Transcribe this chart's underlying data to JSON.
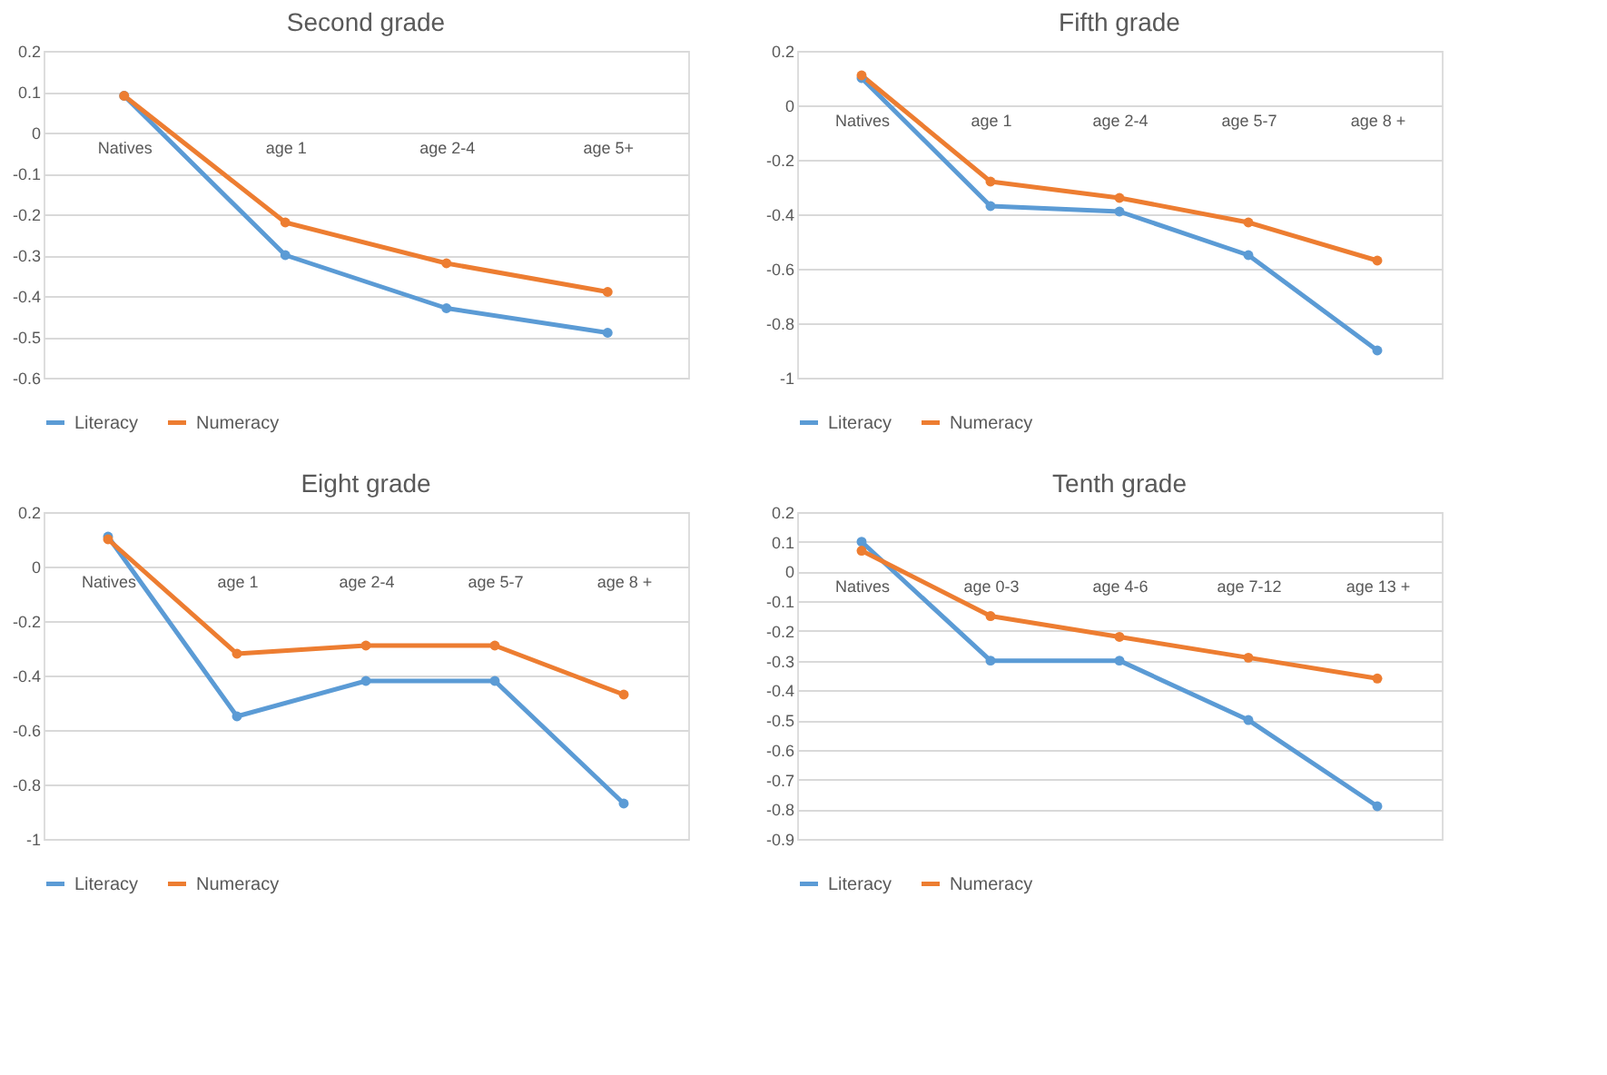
{
  "chart_data": [
    {
      "type": "line",
      "title": "Second grade",
      "categories": [
        "Natives",
        "age 1",
        "age 2-4",
        "age 5+"
      ],
      "ylim": [
        -0.6,
        0.2
      ],
      "yticks": [
        0.2,
        0.1,
        0,
        -0.1,
        -0.2,
        -0.3,
        -0.4,
        -0.5,
        -0.6
      ],
      "grid": "y",
      "legend": "bottom",
      "marker": "circle",
      "series": [
        {
          "name": "Literacy",
          "color": "#5b9bd5",
          "values": [
            0.09,
            -0.3,
            -0.43,
            -0.49
          ]
        },
        {
          "name": "Numeracy",
          "color": "#ed7d31",
          "values": [
            0.09,
            -0.22,
            -0.32,
            -0.39
          ]
        }
      ]
    },
    {
      "type": "line",
      "title": "Fifth grade",
      "categories": [
        "Natives",
        "age 1",
        "age 2-4",
        "age 5-7",
        "age 8 +"
      ],
      "ylim": [
        -1,
        0.2
      ],
      "yticks": [
        0.2,
        0,
        -0.2,
        -0.4,
        -0.6,
        -0.8,
        -1
      ],
      "grid": "y",
      "legend": "bottom",
      "marker": "circle",
      "series": [
        {
          "name": "Literacy",
          "color": "#5b9bd5",
          "values": [
            0.1,
            -0.37,
            -0.39,
            -0.55,
            -0.9
          ]
        },
        {
          "name": "Numeracy",
          "color": "#ed7d31",
          "values": [
            0.11,
            -0.28,
            -0.34,
            -0.43,
            -0.57
          ]
        }
      ]
    },
    {
      "type": "line",
      "title": "Eight grade",
      "categories": [
        "Natives",
        "age 1",
        "age 2-4",
        "age 5-7",
        "age 8 +"
      ],
      "ylim": [
        -1,
        0.2
      ],
      "yticks": [
        0.2,
        0,
        -0.2,
        -0.4,
        -0.6,
        -0.8,
        -1
      ],
      "grid": "y",
      "legend": "bottom",
      "marker": "circle",
      "series": [
        {
          "name": "Literacy",
          "color": "#5b9bd5",
          "values": [
            0.11,
            -0.55,
            -0.42,
            -0.42,
            -0.87
          ]
        },
        {
          "name": "Numeracy",
          "color": "#ed7d31",
          "values": [
            0.1,
            -0.32,
            -0.29,
            -0.29,
            -0.47
          ]
        }
      ]
    },
    {
      "type": "line",
      "title": "Tenth grade",
      "categories": [
        "Natives",
        "age 0-3",
        "age 4-6",
        "age 7-12",
        "age 13 +"
      ],
      "ylim": [
        -0.9,
        0.2
      ],
      "yticks": [
        0.2,
        0.1,
        0,
        -0.1,
        -0.2,
        -0.3,
        -0.4,
        -0.5,
        -0.6,
        -0.7,
        -0.8,
        -0.9
      ],
      "grid": "y",
      "legend": "bottom",
      "marker": "circle",
      "series": [
        {
          "name": "Literacy",
          "color": "#5b9bd5",
          "values": [
            0.1,
            -0.3,
            -0.3,
            -0.5,
            -0.79
          ]
        },
        {
          "name": "Numeracy",
          "color": "#ed7d31",
          "values": [
            0.07,
            -0.15,
            -0.22,
            -0.29,
            -0.36
          ]
        }
      ]
    }
  ]
}
